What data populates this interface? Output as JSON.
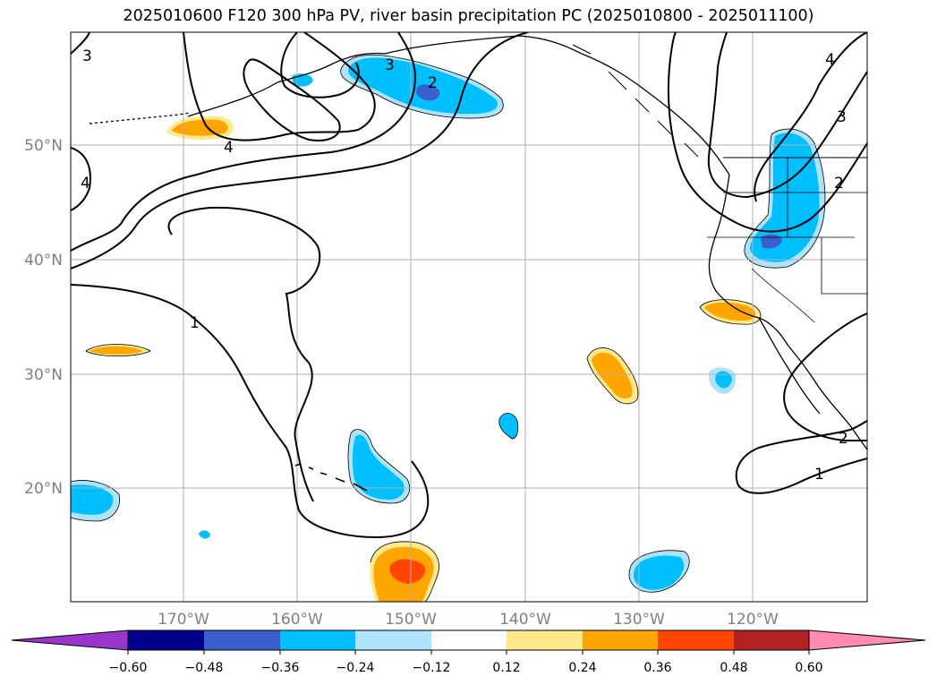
{
  "title": "2025010600 F120 300 hPa PV, river basin precipitation PC (2025010800 - 2025011100)",
  "map": {
    "lat_labels": [
      "50°N",
      "40°N",
      "30°N",
      "20°N"
    ],
    "lon_labels": [
      "170°W",
      "160°W",
      "150°W",
      "140°W",
      "130°W",
      "120°W"
    ],
    "pv_contour_labels": [
      "3",
      "4",
      "3",
      "2",
      "4",
      "1",
      "4",
      "3",
      "2",
      "2",
      "1"
    ]
  },
  "colorbar": {
    "ticks": [
      "−0.60",
      "−0.48",
      "−0.36",
      "−0.24",
      "−0.12",
      "0.12",
      "0.24",
      "0.36",
      "0.48",
      "0.60"
    ],
    "colors": [
      "#9a35cc",
      "#00008b",
      "#3a5fcd",
      "#00bfff",
      "#afe2fb",
      "#ffffff",
      "#ffe98a",
      "#ffa500",
      "#ff4500",
      "#b22222",
      "#ff8cb0"
    ]
  },
  "colors": {
    "neg_strong": "#3a5fcd",
    "neg_mid": "#00bfff",
    "neg_light": "#afe2fb",
    "pos_light": "#ffe98a",
    "pos_mid": "#ffa500",
    "pos_strong": "#ff4500",
    "contour": "#000000",
    "grid": "#b0b0b0"
  }
}
